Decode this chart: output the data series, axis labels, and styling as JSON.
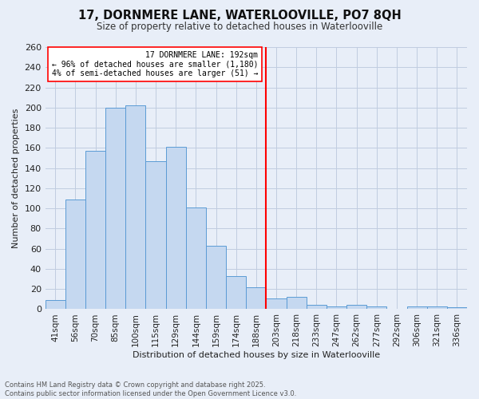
{
  "title": "17, DORNMERE LANE, WATERLOOVILLE, PO7 8QH",
  "subtitle": "Size of property relative to detached houses in Waterlooville",
  "xlabel": "Distribution of detached houses by size in Waterlooville",
  "ylabel": "Number of detached properties",
  "categories": [
    "41sqm",
    "56sqm",
    "70sqm",
    "85sqm",
    "100sqm",
    "115sqm",
    "129sqm",
    "144sqm",
    "159sqm",
    "174sqm",
    "188sqm",
    "203sqm",
    "218sqm",
    "233sqm",
    "247sqm",
    "262sqm",
    "277sqm",
    "292sqm",
    "306sqm",
    "321sqm",
    "336sqm"
  ],
  "values": [
    9,
    109,
    157,
    200,
    202,
    147,
    161,
    101,
    63,
    33,
    22,
    11,
    12,
    4,
    3,
    4,
    3,
    0,
    3,
    3,
    2
  ],
  "bar_color": "#c5d8f0",
  "bar_edge_color": "#5b9bd5",
  "red_line_index": 10,
  "annotation_title": "17 DORNMERE LANE: 192sqm",
  "annotation_line1": "← 96% of detached houses are smaller (1,180)",
  "annotation_line2": "4% of semi-detached houses are larger (51) →",
  "footer_line1": "Contains HM Land Registry data © Crown copyright and database right 2025.",
  "footer_line2": "Contains public sector information licensed under the Open Government Licence v3.0.",
  "bg_color": "#e8eef8",
  "grid_color": "#c0cce0",
  "ylim": [
    0,
    260
  ],
  "yticks": [
    0,
    20,
    40,
    60,
    80,
    100,
    120,
    140,
    160,
    180,
    200,
    220,
    240,
    260
  ]
}
